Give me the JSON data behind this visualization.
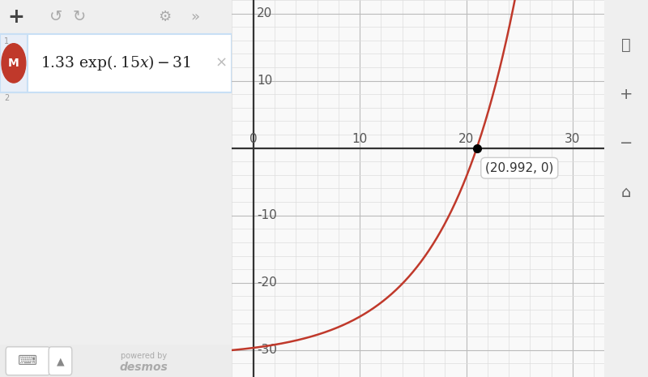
{
  "curve_color": "#c0392b",
  "curve_linewidth": 1.8,
  "bg_color": "#f9f9f9",
  "grid_minor_color": "#dddddd",
  "grid_major_color": "#bbbbbb",
  "axis_color": "#333333",
  "tick_color": "#555555",
  "xmin": -2,
  "xmax": 33,
  "ymin": -33,
  "ymax": 22,
  "xticks": [
    0,
    10,
    20,
    30
  ],
  "yticks": [
    -30,
    -20,
    -10,
    10,
    20
  ],
  "zero_x": 20.992,
  "zero_y": 0,
  "zero_label": "(20.992, 0)",
  "coeff_a": 1.33,
  "coeff_b": 0.15,
  "coeff_c": 31,
  "panel_bg": "#f5f5f5",
  "panel_border_color": "#b8d4f0",
  "expr_row_bg": "#ffffff",
  "icon_color": "#c0392b",
  "desmos_gray": "#aaaaaa",
  "toolbar_bg": "#efefef"
}
